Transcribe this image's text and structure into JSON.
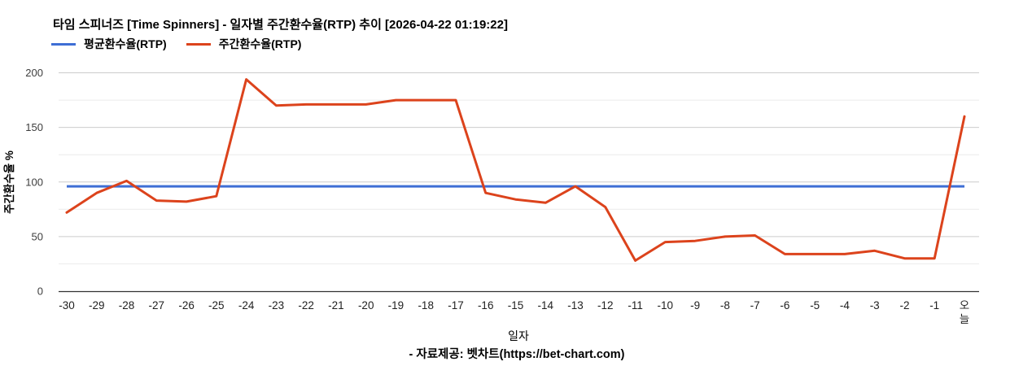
{
  "header": {
    "title": "타임 스피너즈 [Time Spinners] - 일자별 주간환수율(RTP) 추이 [2026-04-22 01:19:22]"
  },
  "legend": {
    "average_label": "평균환수율(RTP)",
    "weekly_label": "주간환수율(RTP)"
  },
  "footer": {
    "credit": "- 자료제공: 벳차트(https://bet-chart.com)"
  },
  "colors": {
    "average_line": "#3e6ed5",
    "weekly_line": "#dc431c",
    "major_gridline": "#cccccc",
    "minor_gridline": "#ebebeb",
    "axis_baseline": "#333333",
    "y_tick_text": "#3d3d3d",
    "x_tick_text": "#1f1f1f"
  },
  "chart_data": {
    "type": "line",
    "title": "타임 스피너즈 [Time Spinners] - 일자별 주간환수율(RTP) 추이 [2026-04-22 01:19:22]",
    "xlabel": "일자",
    "ylabel": "주간환수율 %",
    "ylim": [
      0,
      200
    ],
    "yticks": [
      0,
      50,
      100,
      150,
      200
    ],
    "minor_gridlines": [
      25,
      75,
      125,
      175
    ],
    "grid": true,
    "legend_position": "top-left",
    "categories": [
      "-30",
      "-29",
      "-28",
      "-27",
      "-26",
      "-25",
      "-24",
      "-23",
      "-22",
      "-21",
      "-20",
      "-19",
      "-18",
      "-17",
      "-16",
      "-15",
      "-14",
      "-13",
      "-12",
      "-11",
      "-10",
      "-9",
      "-8",
      "-7",
      "-6",
      "-5",
      "-4",
      "-3",
      "-2",
      "-1",
      "오늘"
    ],
    "series": [
      {
        "name": "평균환수율(RTP)",
        "color": "#3e6ed5",
        "constant": 96
      },
      {
        "name": "주간환수율(RTP)",
        "color": "#dc431c",
        "values": [
          72,
          90,
          101,
          83,
          82,
          87,
          194,
          170,
          171,
          171,
          171,
          175,
          175,
          175,
          90,
          84,
          81,
          96,
          77,
          28,
          45,
          46,
          50,
          51,
          34,
          34,
          34,
          37,
          30,
          30,
          160
        ]
      }
    ]
  }
}
